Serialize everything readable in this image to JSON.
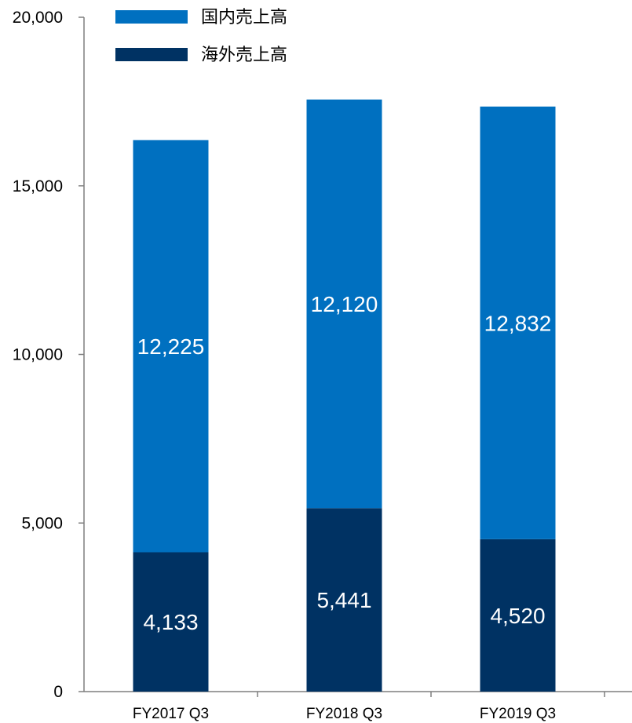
{
  "chart_data": {
    "type": "bar",
    "stacked": true,
    "categories": [
      "FY2017 Q3",
      "FY2018 Q3",
      "FY2019 Q3"
    ],
    "series": [
      {
        "name": "海外売上高",
        "values": [
          4133,
          5441,
          4520
        ],
        "color": "#003263"
      },
      {
        "name": "国内売上高",
        "values": [
          12225,
          12120,
          12832
        ],
        "color": "#0070C0"
      }
    ],
    "data_labels": [
      [
        "4,133",
        "5,441",
        "4,520"
      ],
      [
        "12,225",
        "12,120",
        "12,832"
      ]
    ],
    "legend_order": [
      1,
      0
    ],
    "legend_position": "top-left",
    "ylim": [
      0,
      20000
    ],
    "y_ticks": [
      0,
      5000,
      10000,
      15000,
      20000
    ],
    "y_tick_labels": [
      "0",
      "5,000",
      "10,000",
      "15,000",
      "20,000"
    ],
    "grid": false,
    "title": "",
    "xlabel": "",
    "ylabel": ""
  }
}
